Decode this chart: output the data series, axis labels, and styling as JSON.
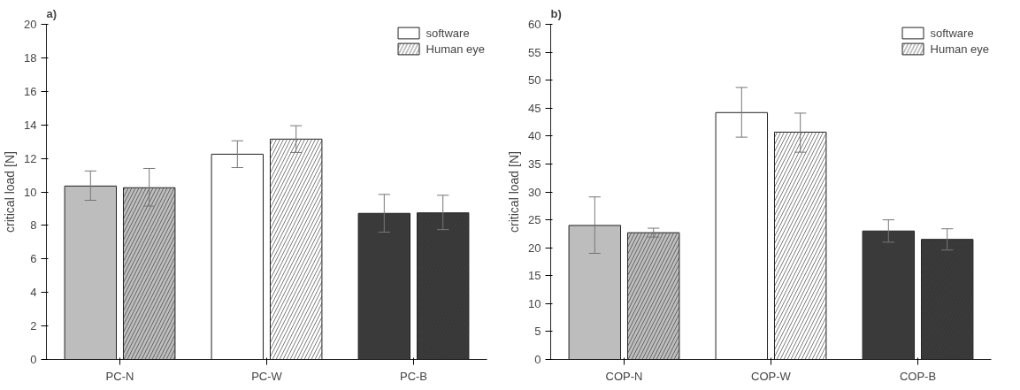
{
  "chart_data": [
    {
      "type": "bar",
      "title": "a)",
      "ylabel": "critical load [N]",
      "categories": [
        "PC-N",
        "PC-W",
        "PC-B"
      ],
      "ylim": [
        0,
        20
      ],
      "yticks": [
        0,
        2,
        4,
        6,
        8,
        10,
        12,
        14,
        16,
        18,
        20
      ],
      "legend": "top right",
      "series": [
        {
          "name": "software",
          "color": "#ffffff",
          "colors": [
            "#bdbdbd",
            "#ffffff",
            "#3a3a3a"
          ],
          "values": [
            10.35,
            12.25,
            8.72
          ],
          "errors": [
            [
              9.5,
              11.25
            ],
            [
              11.45,
              13.05
            ],
            [
              7.6,
              9.85
            ]
          ]
        },
        {
          "name": "Human eye",
          "color": "#ffffff",
          "colors": [
            "#bdbdbd",
            "#ffffff",
            "#3a3a3a"
          ],
          "values": [
            10.25,
            13.15,
            8.75
          ],
          "errors": [
            [
              9.15,
              11.4
            ],
            [
              12.35,
              13.95
            ],
            [
              7.75,
              9.8
            ]
          ]
        }
      ]
    },
    {
      "type": "bar",
      "title": "b)",
      "ylabel": "critical load [N]",
      "categories": [
        "COP-N",
        "COP-W",
        "COP-B"
      ],
      "ylim": [
        0,
        60
      ],
      "yticks": [
        0,
        5,
        10,
        15,
        20,
        25,
        30,
        35,
        40,
        45,
        50,
        55,
        60
      ],
      "legend": "top right",
      "series": [
        {
          "name": "software",
          "color": "#ffffff",
          "colors": [
            "#bdbdbd",
            "#ffffff",
            "#3a3a3a"
          ],
          "values": [
            24.0,
            44.2,
            23.0
          ],
          "errors": [
            [
              19.0,
              29.1
            ],
            [
              39.8,
              48.7
            ],
            [
              21.0,
              25.0
            ]
          ]
        },
        {
          "name": "Human eye",
          "color": "#ffffff",
          "colors": [
            "#bdbdbd",
            "#ffffff",
            "#3a3a3a"
          ],
          "values": [
            22.7,
            40.7,
            21.5
          ],
          "errors": [
            [
              21.9,
              23.5
            ],
            [
              37.1,
              44.1
            ],
            [
              19.6,
              23.4
            ]
          ]
        }
      ]
    }
  ]
}
